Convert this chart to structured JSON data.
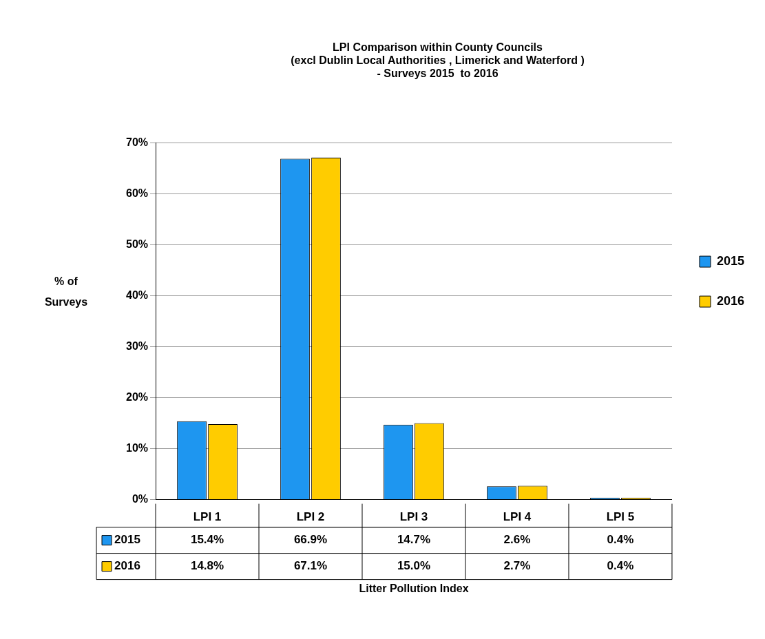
{
  "chart_data": {
    "type": "bar",
    "title": "LPI Comparison within County Councils\n(excl Dublin Local Authorities , Limerick and Waterford )\n- Surveys 2015  to 2016",
    "annotations": [
      "Litter Pollution Index"
    ],
    "ylabel": "% of\nSurveys",
    "categories": [
      "LPI 1",
      "LPI 2",
      "LPI 3",
      "LPI 4",
      "LPI 5"
    ],
    "series": [
      {
        "name": "2015",
        "color": "#1e96f0",
        "values": [
          15.4,
          66.9,
          14.7,
          2.6,
          0.4
        ],
        "value_labels": [
          "15.4%",
          "66.9%",
          "14.7%",
          "2.6%",
          "0.4%"
        ]
      },
      {
        "name": "2016",
        "color": "#ffcc00",
        "values": [
          14.8,
          67.1,
          15.0,
          2.7,
          0.4
        ],
        "value_labels": [
          "14.8%",
          "67.1%",
          "15.0%",
          "2.7%",
          "0.4%"
        ]
      }
    ],
    "ylim": [
      0,
      70
    ],
    "yticks": [
      {
        "value": 0,
        "label": "0%"
      },
      {
        "value": 10,
        "label": "10%"
      },
      {
        "value": 20,
        "label": "20%"
      },
      {
        "value": 30,
        "label": "30%"
      },
      {
        "value": 40,
        "label": "40%"
      },
      {
        "value": 50,
        "label": "50%"
      },
      {
        "value": 60,
        "label": "60%"
      },
      {
        "value": 70,
        "label": "70%"
      }
    ],
    "grid": "y",
    "legend": "right"
  }
}
